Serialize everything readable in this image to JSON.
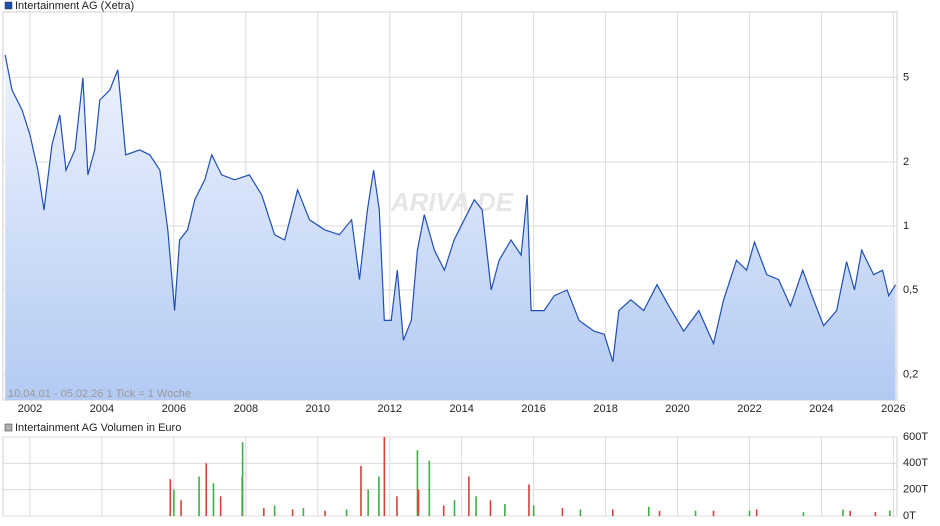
{
  "chart_data": [
    {
      "type": "area",
      "log_scale": true,
      "grid": true,
      "note": "10.04.01 - 05.02.26   1 Tick = 1 Woche",
      "watermark": "ARIVA.DE",
      "xlim": [
        2001.25,
        2026.1
      ],
      "xticks": [
        2002,
        2004,
        2006,
        2008,
        2010,
        2012,
        2014,
        2016,
        2018,
        2020,
        2022,
        2024,
        2026
      ],
      "ylim": [
        0.152,
        10.15
      ],
      "yticks": [
        {
          "value": 0.2,
          "label": "0,2"
        },
        {
          "value": 0.5,
          "label": "0,5"
        },
        1,
        2,
        5
      ],
      "series": [
        {
          "name": "Intertainment AG (Xetra)",
          "color": "#1f4fb5",
          "x": [
            2001.31,
            2001.5,
            2001.78,
            2002.0,
            2002.22,
            2002.39,
            2002.61,
            2002.83,
            2003.0,
            2003.25,
            2003.47,
            2003.61,
            2003.8,
            2003.94,
            2004.22,
            2004.44,
            2004.66,
            2005.05,
            2005.33,
            2005.61,
            2005.83,
            2006.02,
            2006.16,
            2006.38,
            2006.58,
            2006.86,
            2007.05,
            2007.33,
            2007.69,
            2008.1,
            2008.44,
            2008.8,
            2009.08,
            2009.44,
            2009.77,
            2010.19,
            2010.6,
            2010.94,
            2011.16,
            2011.38,
            2011.55,
            2011.71,
            2011.85,
            2012.04,
            2012.21,
            2012.38,
            2012.6,
            2012.77,
            2012.96,
            2013.24,
            2013.52,
            2013.79,
            2014.07,
            2014.35,
            2014.57,
            2014.82,
            2015.04,
            2015.37,
            2015.65,
            2015.82,
            2015.93,
            2016.29,
            2016.57,
            2016.93,
            2017.26,
            2017.68,
            2017.96,
            2018.2,
            2018.37,
            2018.7,
            2019.06,
            2019.43,
            2019.76,
            2020.17,
            2020.59,
            2021.0,
            2021.28,
            2021.64,
            2021.92,
            2022.14,
            2022.48,
            2022.81,
            2023.14,
            2023.48,
            2023.78,
            2024.06,
            2024.42,
            2024.7,
            2024.92,
            2025.12,
            2025.45,
            2025.7,
            2025.87,
            2026.06
          ],
          "values": [
            6.37,
            4.36,
            3.51,
            2.68,
            1.83,
            1.19,
            2.4,
            3.33,
            1.83,
            2.28,
            4.97,
            1.74,
            2.28,
            3.91,
            4.36,
            5.42,
            2.16,
            2.28,
            2.16,
            1.83,
            0.96,
            0.4,
            0.86,
            0.96,
            1.33,
            1.65,
            2.16,
            1.74,
            1.65,
            1.74,
            1.4,
            0.91,
            0.86,
            1.48,
            1.07,
            0.96,
            0.91,
            1.07,
            0.56,
            1.19,
            1.83,
            1.19,
            0.36,
            0.36,
            0.62,
            0.29,
            0.36,
            0.77,
            1.13,
            0.77,
            0.62,
            0.86,
            1.07,
            1.33,
            1.19,
            0.5,
            0.69,
            0.86,
            0.73,
            1.4,
            0.4,
            0.4,
            0.47,
            0.5,
            0.36,
            0.32,
            0.31,
            0.23,
            0.4,
            0.45,
            0.4,
            0.53,
            0.42,
            0.32,
            0.4,
            0.28,
            0.45,
            0.69,
            0.62,
            0.84,
            0.59,
            0.56,
            0.42,
            0.62,
            0.45,
            0.34,
            0.4,
            0.68,
            0.5,
            0.77,
            0.59,
            0.62,
            0.47,
            0.53
          ]
        }
      ]
    },
    {
      "type": "bar",
      "grid": true,
      "xlim": [
        2001.25,
        2026.1
      ],
      "xticks": [
        2002,
        2004,
        2006,
        2008,
        2010,
        2012,
        2014,
        2016,
        2018,
        2020,
        2022,
        2024,
        2026
      ],
      "ylim": [
        0,
        600
      ],
      "yticks": [
        {
          "value": 0,
          "label": "0T"
        },
        {
          "value": 200,
          "label": "200T"
        },
        {
          "value": 400,
          "label": "400T"
        },
        {
          "value": 600,
          "label": "600T"
        }
      ],
      "series": [
        {
          "name": "Intertainment AG Volumen in Euro",
          "color": "#b0b0b0",
          "x": [
            2005.9,
            2006.0,
            2006.2,
            2006.7,
            2006.9,
            2007.1,
            2007.3,
            2007.9,
            2007.91,
            2008.5,
            2008.8,
            2009.3,
            2009.6,
            2010.2,
            2010.8,
            2011.2,
            2011.4,
            2011.7,
            2011.85,
            2012.2,
            2012.77,
            2012.8,
            2013.1,
            2013.5,
            2013.8,
            2014.2,
            2014.4,
            2014.8,
            2015.2,
            2015.87,
            2016.0,
            2016.8,
            2017.3,
            2018.2,
            2019.2,
            2019.5,
            2020.5,
            2021.0,
            2022.0,
            2022.2,
            2023.5,
            2024.6,
            2024.8,
            2025.5,
            2025.9
          ],
          "values": [
            280,
            200,
            120,
            300,
            400,
            250,
            150,
            300,
            560,
            60,
            80,
            50,
            60,
            40,
            50,
            380,
            200,
            300,
            600,
            150,
            500,
            200,
            420,
            80,
            120,
            300,
            150,
            120,
            90,
            240,
            80,
            60,
            50,
            50,
            70,
            40,
            40,
            40,
            40,
            50,
            30,
            50,
            40,
            30,
            40
          ],
          "bar_colors": [
            "#d9403a",
            "#3cb043",
            "#d9403a",
            "#3cb043",
            "#d9403a",
            "#3cb043",
            "#d9403a",
            "#d9403a",
            "#3cb043",
            "#d9403a",
            "#3cb043",
            "#d9403a",
            "#3cb043",
            "#d9403a",
            "#3cb043",
            "#d9403a",
            "#3cb043",
            "#3cb043",
            "#d9403a",
            "#d9403a",
            "#3cb043",
            "#d9403a",
            "#3cb043",
            "#d9403a",
            "#3cb043",
            "#d9403a",
            "#3cb043",
            "#d9403a",
            "#3cb043",
            "#d9403a",
            "#3cb043",
            "#d9403a",
            "#3cb043",
            "#d9403a",
            "#3cb043",
            "#d9403a",
            "#3cb043",
            "#d9403a",
            "#3cb043",
            "#d9403a",
            "#3cb043",
            "#3cb043",
            "#d9403a",
            "#d9403a",
            "#3cb043"
          ]
        }
      ]
    }
  ]
}
